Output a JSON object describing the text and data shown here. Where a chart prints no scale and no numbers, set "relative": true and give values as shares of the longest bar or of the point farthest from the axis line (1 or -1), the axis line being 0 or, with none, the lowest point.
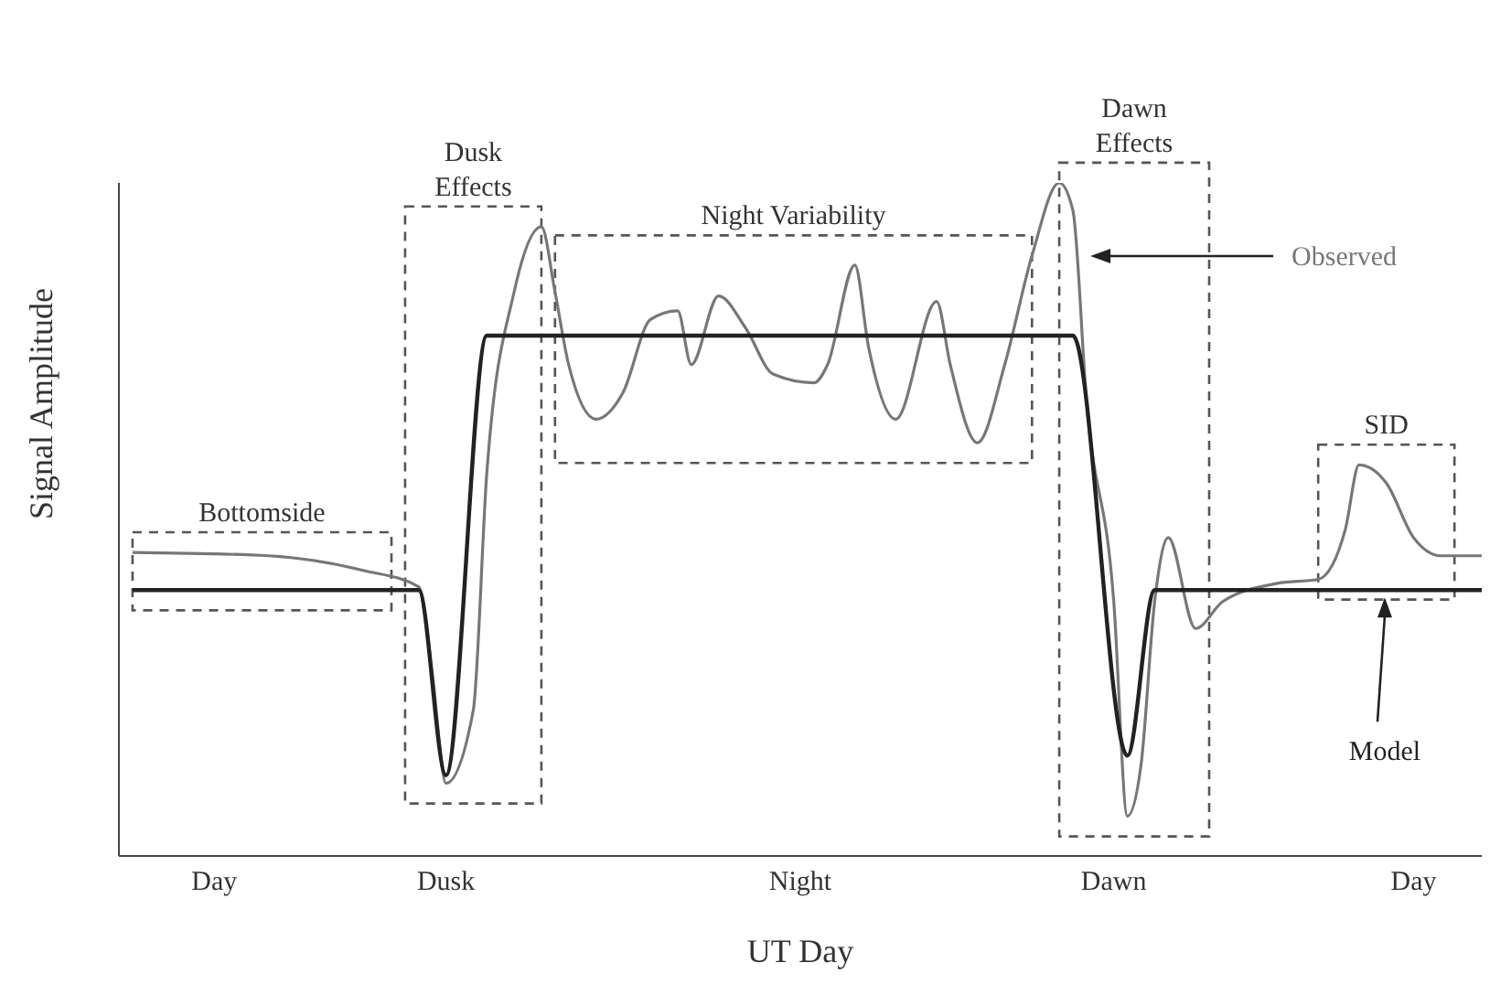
{
  "chart_data": {
    "type": "line",
    "relative": true,
    "xlabel": "UT Day",
    "ylabel": "Signal Amplitude",
    "legend": false,
    "marker": "none",
    "categories": [
      null,
      null,
      null,
      null,
      null,
      null,
      null,
      "Day",
      null,
      null,
      null,
      null,
      null,
      null,
      null,
      null,
      null,
      null,
      null,
      null,
      null,
      null,
      null,
      null,
      "Dusk",
      null,
      null,
      null,
      null,
      null,
      null,
      null,
      null,
      null,
      null,
      null,
      null,
      null,
      null,
      null,
      null,
      null,
      null,
      null,
      null,
      null,
      null,
      null,
      null,
      null,
      "Night",
      null,
      null,
      null,
      null,
      null,
      null,
      null,
      null,
      null,
      null,
      null,
      null,
      null,
      null,
      null,
      null,
      null,
      null,
      null,
      null,
      null,
      null,
      "Dawn",
      null,
      null,
      null,
      null,
      null,
      null,
      null,
      null,
      null,
      null,
      null,
      null,
      null,
      null,
      null,
      null,
      null,
      null,
      null,
      null,
      null,
      "Day",
      null,
      null,
      null,
      null,
      null
    ],
    "series": [
      {
        "name": "Observed",
        "color": "#777777",
        "values": [
          null,
          0.451,
          null,
          null,
          null,
          null,
          null,
          null,
          null,
          null,
          null,
          0.446,
          null,
          null,
          null,
          null,
          null,
          null,
          0.424,
          null,
          null,
          null,
          0.4,
          0.27,
          0.108,
          null,
          0.216,
          0.57,
          null,
          0.838,
          null,
          0.935,
          0.838,
          0.73,
          null,
          0.649,
          null,
          0.689,
          null,
          0.797,
          null,
          0.81,
          0.73,
          null,
          0.832,
          null,
          0.784,
          null,
          0.716,
          null,
          null,
          0.703,
          0.73,
          null,
          0.878,
          0.757,
          null,
          0.649,
          null,
          null,
          0.824,
          0.73,
          null,
          0.614,
          null,
          0.73,
          null,
          0.892,
          null,
          1,
          0.959,
          0.676,
          null,
          0.378,
          0.059,
          0.135,
          0.378,
          0.473,
          null,
          0.338,
          null,
          0.378,
          null,
          null,
          null,
          0.405,
          null,
          null,
          0.411,
          null,
          0.486,
          0.581,
          null,
          0.554,
          null,
          0.473,
          null,
          0.446,
          null,
          null,
          0.446
        ]
      },
      {
        "name": "Model",
        "color": "#222222",
        "values": [
          null,
          0.395,
          null,
          null,
          null,
          null,
          null,
          null,
          null,
          null,
          null,
          null,
          null,
          null,
          null,
          null,
          null,
          null,
          null,
          null,
          null,
          null,
          0.395,
          null,
          0.12,
          null,
          null,
          0.773,
          null,
          null,
          null,
          null,
          null,
          null,
          null,
          null,
          null,
          null,
          null,
          null,
          null,
          null,
          null,
          null,
          null,
          null,
          null,
          null,
          null,
          null,
          null,
          null,
          null,
          null,
          null,
          null,
          null,
          null,
          null,
          null,
          null,
          null,
          null,
          null,
          null,
          null,
          null,
          null,
          null,
          null,
          0.773,
          null,
          null,
          null,
          0.149,
          null,
          0.395,
          null,
          null,
          null,
          null,
          null,
          null,
          null,
          null,
          null,
          null,
          null,
          null,
          null,
          null,
          null,
          null,
          null,
          null,
          null,
          null,
          null,
          null,
          null,
          0.395
        ]
      }
    ],
    "annotations": [
      "Bottomside",
      "Dusk Effects",
      "Night Variability",
      "Dawn Effects",
      "SID"
    ]
  }
}
